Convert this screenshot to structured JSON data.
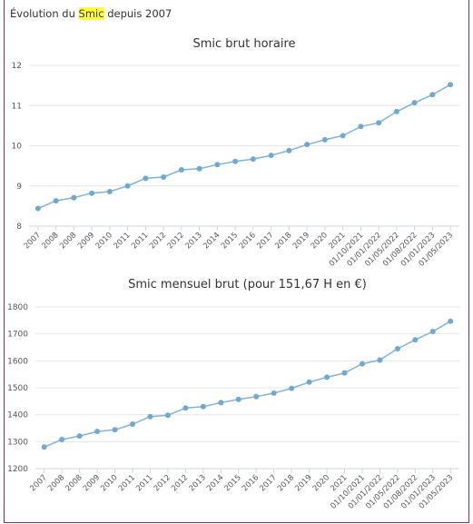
{
  "header": {
    "prefix": "Évolution du ",
    "highlight": "Smic",
    "suffix": " depuis 2007"
  },
  "colors": {
    "line": "#7fb4d8",
    "point": "#6fa8d2",
    "highlight": "#ffff33",
    "border": "#8a2a5a"
  },
  "chart_data": [
    {
      "type": "line",
      "title": "Smic brut horaire",
      "categories": [
        "2007",
        "2008",
        "2008",
        "2009",
        "2010",
        "2011",
        "2011",
        "2012",
        "2012",
        "2013",
        "2014",
        "2015",
        "2016",
        "2017",
        "2018",
        "2019",
        "2020",
        "2021",
        "01/10/2021",
        "01/01/2022",
        "01/05/2022",
        "01/08/2022",
        "01/01/2023",
        "01/05/2023"
      ],
      "values": [
        8.44,
        8.63,
        8.71,
        8.82,
        8.86,
        9.0,
        9.19,
        9.22,
        9.4,
        9.43,
        9.53,
        9.61,
        9.67,
        9.76,
        9.88,
        10.03,
        10.15,
        10.25,
        10.48,
        10.57,
        10.85,
        11.07,
        11.27,
        11.52
      ],
      "yticks": [
        8,
        9,
        10,
        11,
        12
      ],
      "ylim": [
        8,
        12
      ],
      "grid": true,
      "legend": "none"
    },
    {
      "type": "line",
      "title": "Smic mensuel brut (pour 151,67 H en €)",
      "categories": [
        "2007",
        "2008",
        "2008",
        "2009",
        "2010",
        "2011",
        "2011",
        "2012",
        "2012",
        "2013",
        "2014",
        "2015",
        "2016",
        "2017",
        "2018",
        "2019",
        "2020",
        "2021",
        "01/10/2021",
        "01/01/2022",
        "01/05/2022",
        "01/08/2022",
        "01/01/2023",
        "01/05/2023"
      ],
      "values": [
        1280,
        1308,
        1321,
        1338,
        1344,
        1365,
        1393,
        1398,
        1425,
        1430,
        1445,
        1457,
        1467,
        1480,
        1498,
        1521,
        1539,
        1555,
        1589,
        1603,
        1645,
        1678,
        1709,
        1747
      ],
      "yticks": [
        1200,
        1300,
        1400,
        1500,
        1600,
        1700,
        1800
      ],
      "ylim": [
        1200,
        1800
      ],
      "grid": true,
      "legend": "none"
    }
  ]
}
